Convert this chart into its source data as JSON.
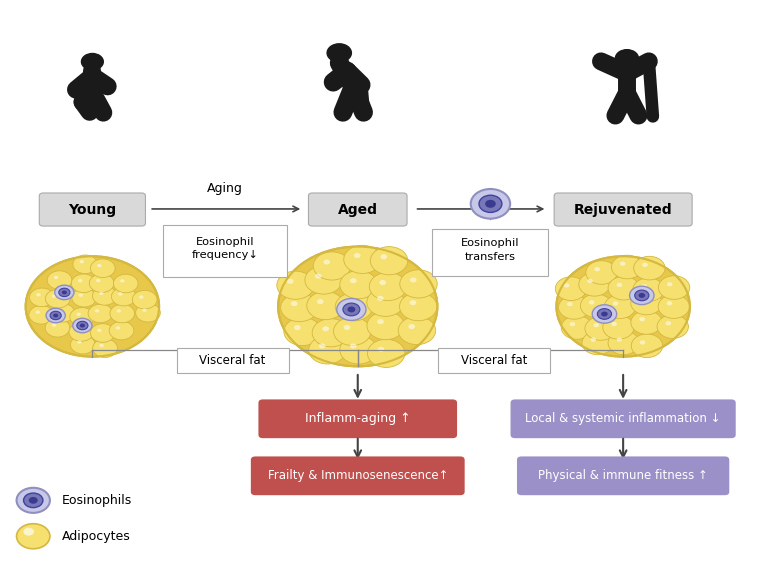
{
  "bg_color": "#ffffff",
  "figure_size": [
    7.61,
    5.73
  ],
  "dpi": 100,
  "labels": {
    "young": "Young",
    "aged": "Aged",
    "rejuvenated": "Rejuvenated",
    "aging_arrow": "Aging",
    "eosinophil_freq": "Eosinophil\nfrequency↓",
    "eosinophil_transfer": "Eosinophil\ntransfers",
    "visceral_fat_1": "Visceral fat",
    "visceral_fat_2": "Visceral fat",
    "inflammaging": "Inflamm-aging ↑",
    "frailty": "Frailty & Immunosenescence↑",
    "local_inflammation": "Local & systemic inflammation ↓",
    "physical_fitness": "Physical & immune fitness ↑",
    "eosinophils_legend": "Eosinophils",
    "adipocytes_legend": "Adipocytes"
  },
  "colors": {
    "red_box": "#c0504d",
    "purple_box": "#9b91c8",
    "label_box_fill": "#d9d9d9",
    "label_box_edge": "#aaaaaa",
    "white": "#ffffff",
    "black": "#1a1a1a",
    "adipocyte_fill": "#f5e070",
    "adipocyte_stroke": "#d4b840",
    "adipocyte_bg": "#e8c84a",
    "eosinophil_outer_fill": "#c8c8e8",
    "eosinophil_outer_edge": "#9090c0",
    "eosinophil_inner_fill": "#7878b8",
    "eosinophil_inner_edge": "#4040a0",
    "eosinophil_center": "#3a3a90",
    "arrow_color": "#444444",
    "line_color": "#888888",
    "info_box_fill": "#ffffff",
    "info_box_edge": "#aaaaaa"
  }
}
